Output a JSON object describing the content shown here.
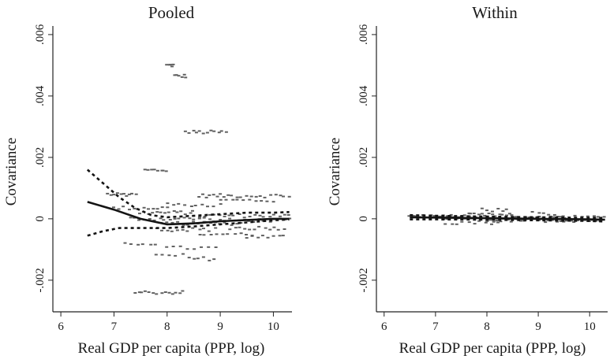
{
  "chart_data": [
    {
      "type": "scatter",
      "title": "Pooled",
      "xlabel": "Real GDP per capita (PPP, log)",
      "ylabel": "Covariance",
      "xlim": [
        5.85,
        10.35
      ],
      "ylim": [
        -0.00303,
        0.00628
      ],
      "xticks": [
        6,
        7,
        8,
        9,
        10
      ],
      "xtick_labels": [
        "6",
        "7",
        "8",
        "9",
        "10"
      ],
      "yticks": [
        -0.002,
        0,
        0.002,
        0.004,
        0.006
      ],
      "ytick_labels": [
        "-.002",
        "0",
        ".002",
        ".004",
        ".006"
      ],
      "grid": false,
      "clusters": [
        {
          "x0": 8.0,
          "x1": 8.1,
          "y": 0.005,
          "n": 5
        },
        {
          "x0": 8.15,
          "x1": 8.35,
          "y": 0.00465,
          "n": 6
        },
        {
          "x0": 8.35,
          "x1": 9.1,
          "y": 0.00282,
          "n": 12
        },
        {
          "x0": 7.6,
          "x1": 8.0,
          "y": 0.00158,
          "n": 8
        },
        {
          "x0": 6.9,
          "x1": 7.4,
          "y": 0.0008,
          "n": 10
        },
        {
          "x0": 8.6,
          "x1": 9.2,
          "y": 0.00075,
          "n": 10
        },
        {
          "x0": 9.3,
          "x1": 10.3,
          "y": 0.00075,
          "n": 12
        },
        {
          "x0": 9.0,
          "x1": 10.0,
          "y": 0.0006,
          "n": 10
        },
        {
          "x0": 8.0,
          "x1": 9.0,
          "y": 0.00045,
          "n": 10
        },
        {
          "x0": 7.0,
          "x1": 8.0,
          "y": 0.00035,
          "n": 12
        },
        {
          "x0": 7.5,
          "x1": 8.5,
          "y": 0.0002,
          "n": 14
        },
        {
          "x0": 8.5,
          "x1": 10.3,
          "y": 0.0001,
          "n": 20
        },
        {
          "x0": 7.3,
          "x1": 8.7,
          "y": 0.0,
          "n": 16
        },
        {
          "x0": 8.7,
          "x1": 10.3,
          "y": -5e-05,
          "n": 18
        },
        {
          "x0": 7.9,
          "x1": 9.4,
          "y": -0.00015,
          "n": 16
        },
        {
          "x0": 9.2,
          "x1": 10.2,
          "y": -0.0003,
          "n": 12
        },
        {
          "x0": 7.8,
          "x1": 8.9,
          "y": -0.00035,
          "n": 12
        },
        {
          "x0": 8.6,
          "x1": 9.6,
          "y": -0.0005,
          "n": 10
        },
        {
          "x0": 9.5,
          "x1": 10.2,
          "y": -0.0006,
          "n": 8
        },
        {
          "x0": 7.2,
          "x1": 7.8,
          "y": -0.0008,
          "n": 6
        },
        {
          "x0": 8.0,
          "x1": 8.9,
          "y": -0.00095,
          "n": 8
        },
        {
          "x0": 7.8,
          "x1": 8.3,
          "y": -0.0012,
          "n": 5
        },
        {
          "x0": 8.4,
          "x1": 8.9,
          "y": -0.0013,
          "n": 6
        },
        {
          "x0": 7.4,
          "x1": 8.3,
          "y": -0.0024,
          "n": 14
        }
      ],
      "fit_line": {
        "x": [
          6.5,
          7.0,
          7.5,
          8.0,
          8.5,
          9.0,
          9.5,
          10.0,
          10.3
        ],
        "y": [
          0.00055,
          0.0003,
          0.0,
          -0.00018,
          -0.00015,
          -8e-05,
          -4e-05,
          0.0,
          0.0
        ]
      },
      "ci_upper": {
        "x": [
          6.5,
          6.8,
          7.1,
          7.4,
          7.7,
          8.0,
          8.5,
          9.0,
          9.5,
          10.0,
          10.3
        ],
        "y": [
          0.0016,
          0.00115,
          0.0007,
          0.00035,
          0.00012,
          5e-05,
          0.0001,
          0.00015,
          0.0002,
          0.0002,
          0.00022
        ]
      },
      "ci_lower": {
        "x": [
          6.5,
          6.8,
          7.1,
          7.4,
          7.7,
          8.0,
          8.5,
          9.0,
          9.5,
          10.0,
          10.3
        ],
        "y": [
          -0.00055,
          -0.0004,
          -0.0003,
          -0.0003,
          -0.0003,
          -0.0003,
          -0.00025,
          -0.00018,
          -0.00012,
          -5e-05,
          -2e-05
        ]
      }
    },
    {
      "type": "scatter",
      "title": "Within",
      "xlabel": "Real GDP per capita (PPP, log)",
      "ylabel": "Covariance",
      "xlim": [
        5.85,
        10.35
      ],
      "ylim": [
        -0.00303,
        0.00628
      ],
      "xticks": [
        6,
        7,
        8,
        9,
        10
      ],
      "xtick_labels": [
        "6",
        "7",
        "8",
        "9",
        "10"
      ],
      "yticks": [
        -0.002,
        0,
        0.002,
        0.004,
        0.006
      ],
      "ytick_labels": [
        "-.002",
        "0",
        ".002",
        ".004",
        ".006"
      ],
      "grid": false,
      "clusters": [
        {
          "x0": 6.5,
          "x1": 7.5,
          "y": 8e-05,
          "n": 16
        },
        {
          "x0": 7.0,
          "x1": 8.0,
          "y": 3e-05,
          "n": 18
        },
        {
          "x0": 7.5,
          "x1": 8.5,
          "y": 0.00012,
          "n": 16
        },
        {
          "x0": 7.9,
          "x1": 8.4,
          "y": 0.00028,
          "n": 6
        },
        {
          "x0": 8.0,
          "x1": 9.0,
          "y": -5e-05,
          "n": 16
        },
        {
          "x0": 8.5,
          "x1": 9.5,
          "y": 2e-05,
          "n": 16
        },
        {
          "x0": 9.0,
          "x1": 10.2,
          "y": -5e-05,
          "n": 18
        },
        {
          "x0": 8.9,
          "x1": 9.3,
          "y": 0.00018,
          "n": 5
        },
        {
          "x0": 7.2,
          "x1": 8.2,
          "y": -0.00012,
          "n": 10
        },
        {
          "x0": 9.5,
          "x1": 10.3,
          "y": 6e-05,
          "n": 8
        }
      ],
      "fit_line": {
        "x": [
          6.5,
          7.0,
          8.0,
          9.0,
          10.0,
          10.3
        ],
        "y": [
          5e-05,
          4e-05,
          2e-05,
          0.0,
          -2e-05,
          -3e-05
        ]
      },
      "ci_upper": {
        "x": [
          6.5,
          7.0,
          8.0,
          9.0,
          10.0,
          10.3
        ],
        "y": [
          0.00012,
          0.0001,
          7e-05,
          5e-05,
          3e-05,
          3e-05
        ]
      },
      "ci_lower": {
        "x": [
          6.5,
          7.0,
          8.0,
          9.0,
          10.0,
          10.3
        ],
        "y": [
          -2e-05,
          -2e-05,
          -3e-05,
          -5e-05,
          -7e-05,
          -9e-05
        ]
      }
    }
  ],
  "colors": {
    "points": "#606060",
    "fit": "#141414",
    "axis": "#222222"
  }
}
